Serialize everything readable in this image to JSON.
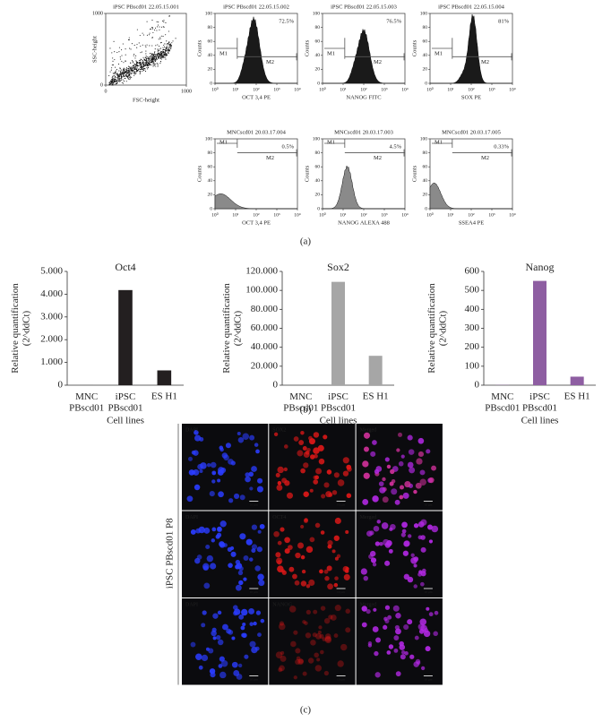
{
  "panel_a": {
    "label": "(a)",
    "scatter": {
      "title": "iPSC PBscd01 22.05.15.001",
      "x_label": "FSC-height",
      "y_label": "SSC-height",
      "gate": "R1",
      "xlim": [
        0,
        1000
      ],
      "ylim": [
        0,
        1000
      ],
      "xticks": [
        0,
        1000
      ],
      "yticks": [
        0,
        1000
      ]
    },
    "hist_xlim": [
      1,
      10000
    ],
    "hist_xticks": [
      {
        "value": 1,
        "label": "10⁰"
      },
      {
        "value": 10,
        "label": "10¹"
      },
      {
        "value": 100,
        "label": "10²"
      },
      {
        "value": 1000,
        "label": "10³"
      },
      {
        "value": 10000,
        "label": "10⁴"
      }
    ],
    "hist_ylim": [
      0,
      100
    ],
    "hist_yticks": [
      0,
      20,
      40,
      60,
      80,
      100
    ],
    "y_label": "Counts",
    "gates": [
      "M1",
      "M2"
    ],
    "histograms": [
      {
        "title": "iPSC PBscd01 22.05.15.002",
        "percent": "72.5%",
        "x_label": "OCT 3,4 PE"
      },
      {
        "title": "iPSC PBscd01 22.05.15.003",
        "percent": "76.5%",
        "x_label": "NANOG FITC"
      },
      {
        "title": "iPSC PBscd01 22.05.15.004",
        "percent": "81%",
        "x_label": "SOX PE"
      },
      {
        "title": "MNCscd01 20.03.17.004",
        "percent": "0.5%",
        "x_label": "OCT 3,4 PE"
      },
      {
        "title": "MNCscd01 20.03.17.003",
        "percent": "4.5%",
        "x_label": "NANOG ALEXA 488"
      },
      {
        "title": "MNCscd01 20.03.17.005",
        "percent": "0.33%",
        "x_label": "SSEA4 PE"
      }
    ]
  },
  "panel_b": {
    "label": "(b)"
  },
  "chart_data": [
    {
      "type": "bar",
      "title": "Oct4",
      "y_label": "Relative quantification\n(2^ddCt)",
      "x_label": "Cell lines",
      "categories": [
        "MNC\nPBscd01",
        "iPSC\nPBscd01",
        "ES H1"
      ],
      "values": [
        1,
        4180,
        650
      ],
      "color": "#231f20",
      "ylim": [
        0,
        5000
      ],
      "yticks": [
        {
          "value": 0,
          "label": "0"
        },
        {
          "value": 1000,
          "label": "1.000"
        },
        {
          "value": 2000,
          "label": "2.000"
        },
        {
          "value": 3000,
          "label": "3.000"
        },
        {
          "value": 4000,
          "label": "4.000"
        },
        {
          "value": 5000,
          "label": "5.000"
        }
      ]
    },
    {
      "type": "bar",
      "title": "Sox2",
      "y_label": "Relative quantification\n(2^ddCt)",
      "x_label": "Cell lines",
      "categories": [
        "MNC\nPBscd01",
        "iPSC\nPBscd01",
        "ES H1"
      ],
      "values": [
        1,
        109000,
        31000
      ],
      "color": "#a6a6a6",
      "ylim": [
        0,
        120000
      ],
      "yticks": [
        {
          "value": 0,
          "label": "0"
        },
        {
          "value": 20000,
          "label": "20.000"
        },
        {
          "value": 40000,
          "label": "40.000"
        },
        {
          "value": 60000,
          "label": "60.000"
        },
        {
          "value": 80000,
          "label": "80.000"
        },
        {
          "value": 100000,
          "label": "100.000"
        },
        {
          "value": 120000,
          "label": "120.000"
        }
      ]
    },
    {
      "type": "bar",
      "title": "Nanog",
      "y_label": "Relative quantification\n(2^ddCt)",
      "x_label": "Cell lines",
      "categories": [
        "MNC\nPBscd01",
        "iPSC\nPBscd01",
        "ES H1"
      ],
      "values": [
        1,
        550,
        45
      ],
      "color": "#8e5ea2",
      "ylim": [
        0,
        600
      ],
      "yticks": [
        0,
        100,
        200,
        300,
        400,
        500,
        600
      ]
    }
  ],
  "panel_c": {
    "label": "(c)",
    "side_label": "iPSC PBscd01 P8",
    "scale_bar": "10 µm",
    "rows": [
      [
        "DAPI",
        "SOX2",
        "Merged"
      ],
      [
        "DAPI",
        "OCT4",
        "Merged"
      ],
      [
        "DAPI",
        "NANOG",
        "Merged"
      ]
    ]
  }
}
